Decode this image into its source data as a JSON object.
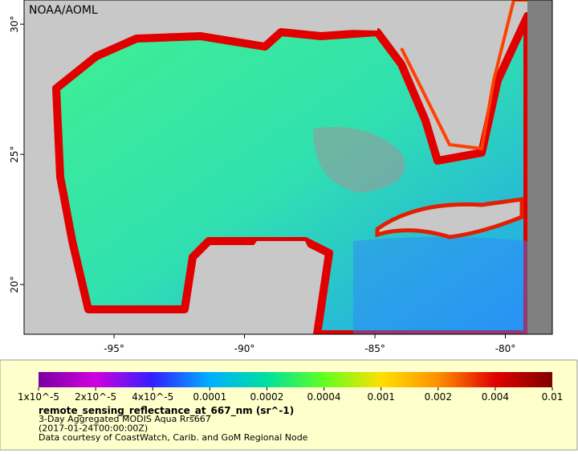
{
  "map": {
    "credit": "NOAA/AOML",
    "xlim": [
      -98.45,
      -78.2
    ],
    "ylim": [
      18.09,
      30.93
    ],
    "lon_ticks": [
      {
        "value": -95,
        "label": "-95°"
      },
      {
        "value": -90,
        "label": "-90°"
      },
      {
        "value": -85,
        "label": "-85°"
      },
      {
        "value": -80,
        "label": "-80°"
      }
    ],
    "lat_ticks": [
      {
        "value": 30,
        "label": "30°"
      },
      {
        "value": 25,
        "label": "25°"
      },
      {
        "value": 20,
        "label": "20°"
      }
    ]
  },
  "colorbar": {
    "colors": [
      "#7a00a0",
      "#d000e0",
      "#3020ff",
      "#00b0ff",
      "#00e0a0",
      "#60ff20",
      "#ffe000",
      "#ff9000",
      "#e00000",
      "#800000"
    ],
    "ticks": [
      {
        "value": 1e-05,
        "label": "1x10^-5"
      },
      {
        "value": 2e-05,
        "label": "2x10^-5"
      },
      {
        "value": 4e-05,
        "label": "4x10^-5"
      },
      0.0001,
      0.0002,
      0.0004,
      0.001,
      0.002,
      0.004,
      0.01
    ]
  },
  "caption": {
    "title": "remote_sensing_reflectance_at_667_nm (sr^-1)",
    "lines": [
      "3-Day Aggregated MODIS Aqua Rrs667",
      "(2017-01-24T00:00:00Z)",
      "Data courtesy of CoastWatch, Carib. and GoM Regional Node"
    ]
  }
}
